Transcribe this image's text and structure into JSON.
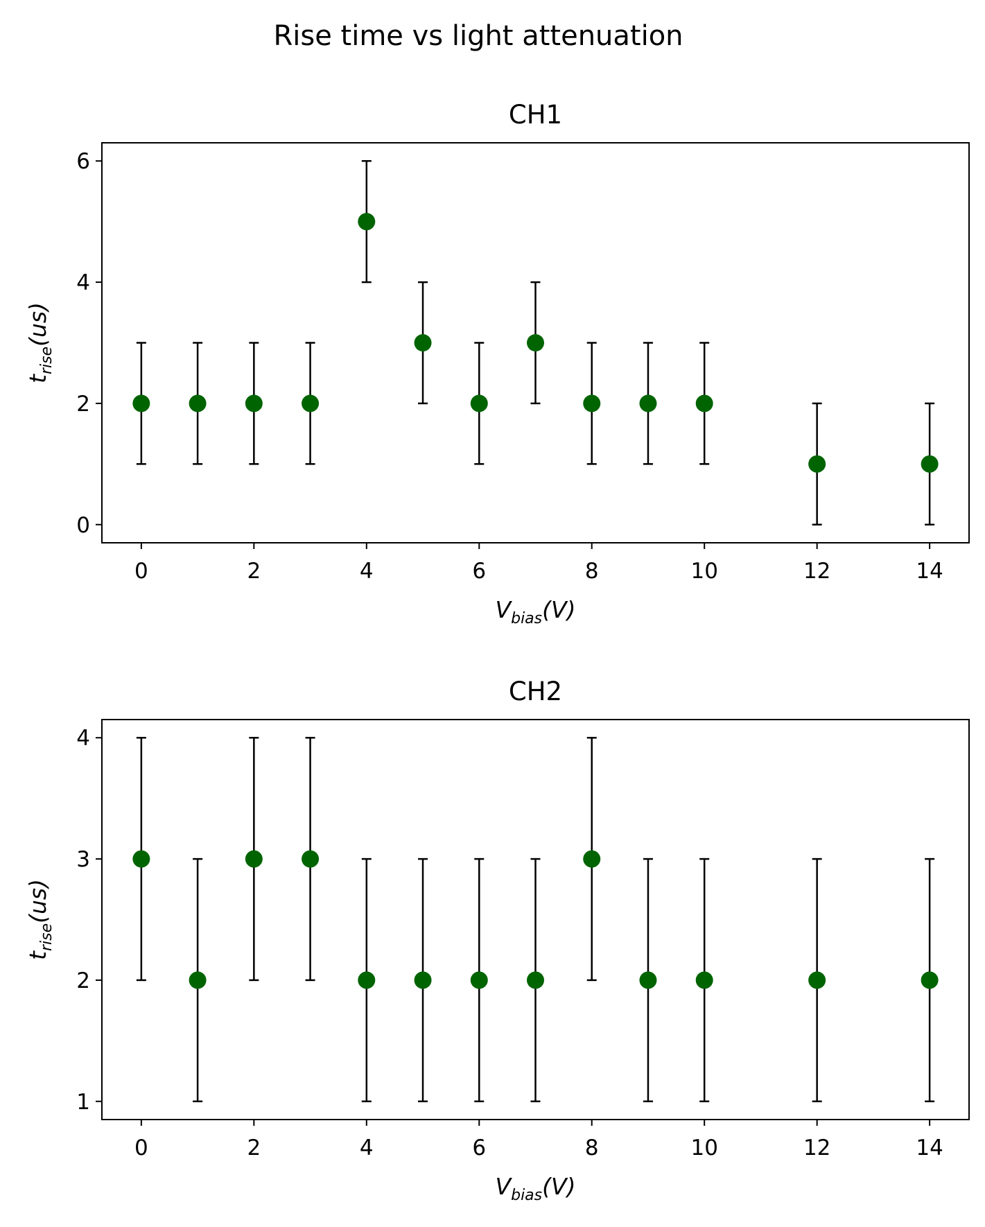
{
  "figure": {
    "suptitle": "Rise time vs light attenuation"
  },
  "chart_data": [
    {
      "type": "scatter",
      "title": "CH1",
      "xlabel": "V_bias(V)",
      "xlabel_base": "V",
      "xlabel_sub": "bias",
      "xlabel_rest": "(V)",
      "ylabel": "t_rise(us)",
      "ylabel_base": "t",
      "ylabel_sub": "rise",
      "ylabel_rest": "(us)",
      "xlim": [
        -0.7,
        14.7
      ],
      "ylim": [
        -0.3,
        6.3
      ],
      "xticks": [
        0,
        2,
        4,
        6,
        8,
        10,
        12,
        14
      ],
      "yticks": [
        0,
        2,
        4,
        6
      ],
      "marker_color": "#006400",
      "errorbar_color": "#000000",
      "grid": false,
      "x": [
        0,
        1,
        2,
        3,
        4,
        5,
        6,
        7,
        8,
        9,
        10,
        12,
        14
      ],
      "y": [
        2,
        2,
        2,
        2,
        5,
        3,
        2,
        3,
        2,
        2,
        2,
        1,
        1
      ],
      "yerr": [
        1,
        1,
        1,
        1,
        1,
        1,
        1,
        1,
        1,
        1,
        1,
        1,
        1
      ]
    },
    {
      "type": "scatter",
      "title": "CH2",
      "xlabel": "V_bias(V)",
      "xlabel_base": "V",
      "xlabel_sub": "bias",
      "xlabel_rest": "(V)",
      "ylabel": "t_rise(us)",
      "ylabel_base": "t",
      "ylabel_sub": "rise",
      "ylabel_rest": "(us)",
      "xlim": [
        -0.7,
        14.7
      ],
      "ylim": [
        0.85,
        4.15
      ],
      "xticks": [
        0,
        2,
        4,
        6,
        8,
        10,
        12,
        14
      ],
      "yticks": [
        1,
        2,
        3,
        4
      ],
      "marker_color": "#006400",
      "errorbar_color": "#000000",
      "grid": false,
      "x": [
        0,
        1,
        2,
        3,
        4,
        5,
        6,
        7,
        8,
        9,
        10,
        12,
        14
      ],
      "y": [
        3,
        2,
        3,
        3,
        2,
        2,
        2,
        2,
        3,
        2,
        2,
        2,
        2
      ],
      "yerr": [
        1,
        1,
        1,
        1,
        1,
        1,
        1,
        1,
        1,
        1,
        1,
        1,
        1
      ]
    }
  ]
}
